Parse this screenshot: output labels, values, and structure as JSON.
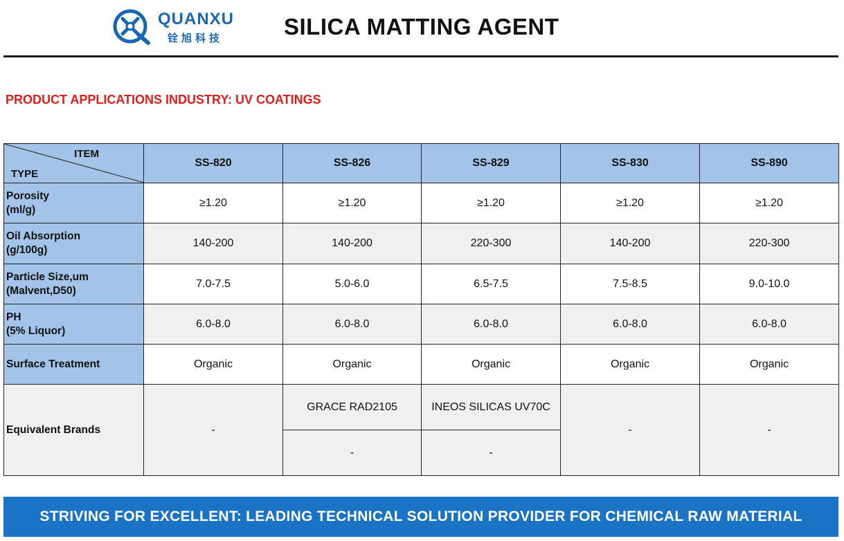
{
  "header": {
    "brand_en": "QUANXU",
    "brand_cn": "铨旭科技",
    "title": "SILICA MATTING AGENT",
    "logo_icon": "quanxu-logo-icon"
  },
  "section_title": "PRODUCT APPLICATIONS INDUSTRY:  UV COATINGS",
  "table": {
    "corner_item": "ITEM",
    "corner_type": "TYPE",
    "columns": [
      "SS-820",
      "SS-826",
      "SS-829",
      "SS-830",
      "SS-890"
    ],
    "rows": [
      {
        "label_1": "Porosity",
        "label_2": "(ml/g)",
        "values": [
          "≥1.20",
          "≥1.20",
          "≥1.20",
          "≥1.20",
          "≥1.20"
        ]
      },
      {
        "label_1": "Oil Absorption",
        "label_2": "(g/100g)",
        "values": [
          "140-200",
          "140-200",
          "220-300",
          "140-200",
          "220-300"
        ]
      },
      {
        "label_1": "Particle Size,um",
        "label_2": "(Malvent,D50)",
        "values": [
          "7.0-7.5",
          "5.0-6.0",
          "6.5-7.5",
          "7.5-8.5",
          "9.0-10.0"
        ]
      },
      {
        "label_1": "PH",
        "label_2": "(5% Liquor)",
        "values": [
          "6.0-8.0",
          "6.0-8.0",
          "6.0-8.0",
          "6.0-8.0",
          "6.0-8.0"
        ]
      },
      {
        "label_1": "Surface Treatment",
        "label_2": "",
        "values": [
          "Organic",
          "Organic",
          "Organic",
          "Organic",
          "Organic"
        ]
      }
    ],
    "equivalent": {
      "label": "Equivalent Brands",
      "ss820": "-",
      "ss826_top": "GRACE  RAD2105",
      "ss826_bottom": "-",
      "ss829_top": "INEOS SILICAS UV70C",
      "ss829_bottom": "-",
      "ss830": "-",
      "ss890": "-"
    }
  },
  "footer": "STRIVING FOR EXCELLENT: LEADING TECHNICAL SOLUTION PROVIDER FOR CHEMICAL RAW MATERIAL",
  "colors": {
    "brand_blue": "#1b66b3",
    "header_fill": "#a3c4e8",
    "section_red": "#e01c1c",
    "footer_blue": "#1b73c6"
  }
}
